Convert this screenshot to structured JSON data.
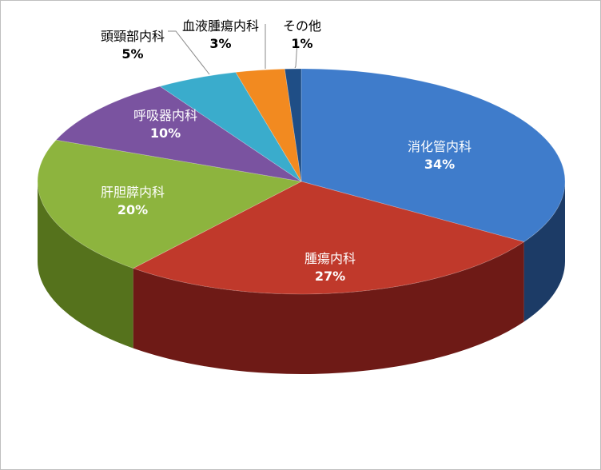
{
  "chart_data": {
    "type": "pie",
    "style": "3d-pie",
    "legend": "none",
    "categories": [
      "消化管内科",
      "腫瘍内科",
      "肝胆膵内科",
      "呼吸器内科",
      "頭頸部内科",
      "血液腫瘍内科",
      "その他"
    ],
    "values": [
      34,
      27,
      20,
      10,
      5,
      3,
      1
    ],
    "value_labels": [
      "34%",
      "27%",
      "20%",
      "10%",
      "5%",
      "3%",
      "1%"
    ],
    "colors": [
      "#3f7ccb",
      "#c0392b",
      "#8db43e",
      "#7a53a0",
      "#3aaccc",
      "#f28a20",
      "#1f4e86"
    ],
    "side_colors": [
      "#1c3b66",
      "#6e1a16",
      "#55721c",
      "#4b3166",
      "#23758c",
      "#a85a10",
      "#12304f"
    ],
    "label_colors": [
      "#ffffff",
      "#ffffff",
      "#ffffff",
      "#ffffff",
      "#000000",
      "#000000",
      "#000000"
    ]
  }
}
